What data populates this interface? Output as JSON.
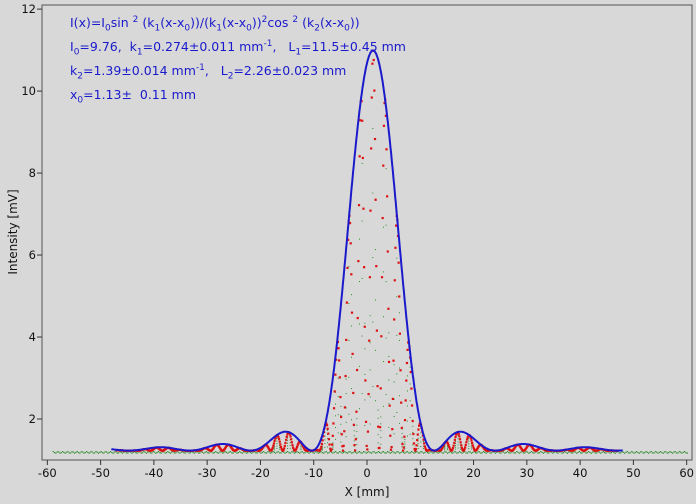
{
  "chart_data": {
    "type": "line",
    "xlabel": "X [mm]",
    "ylabel": "Intensity [mV]",
    "xlim": [
      -61,
      61
    ],
    "ylim": [
      1.0,
      12.1
    ],
    "xticks": [
      -60,
      -50,
      -40,
      -30,
      -20,
      -10,
      0,
      10,
      20,
      30,
      40,
      50,
      60
    ],
    "yticks": [
      2,
      4,
      6,
      8,
      10,
      12
    ],
    "grid": false,
    "fit": {
      "I0": 9.76,
      "k1": 0.274,
      "L1": 11.5,
      "k2": 1.39,
      "L2": 2.26,
      "x0": 1.13,
      "offset": 1.23,
      "x_range": [
        -48,
        48
      ]
    },
    "annotations": {
      "formula": "I(x)=I0sin 2 (k1(x-x0))/(k1(x-x0))2cos 2 (k2(x-x0))",
      "line1": "I0=9.76,  k1=0.274±0.011 mm-1,   L1=11.5±0.45 mm",
      "line2": "k2=1.39±0.014 mm-1,   L2=2.26±0.023 mm",
      "line3": "x0=1.13±  0.11 mm"
    },
    "series": [
      {
        "style": "fit-curve",
        "color": "#1a1acc"
      },
      {
        "style": "measured-points",
        "color": "#dd1111"
      },
      {
        "style": "background-points",
        "color": "#2e8b2e"
      }
    ]
  }
}
